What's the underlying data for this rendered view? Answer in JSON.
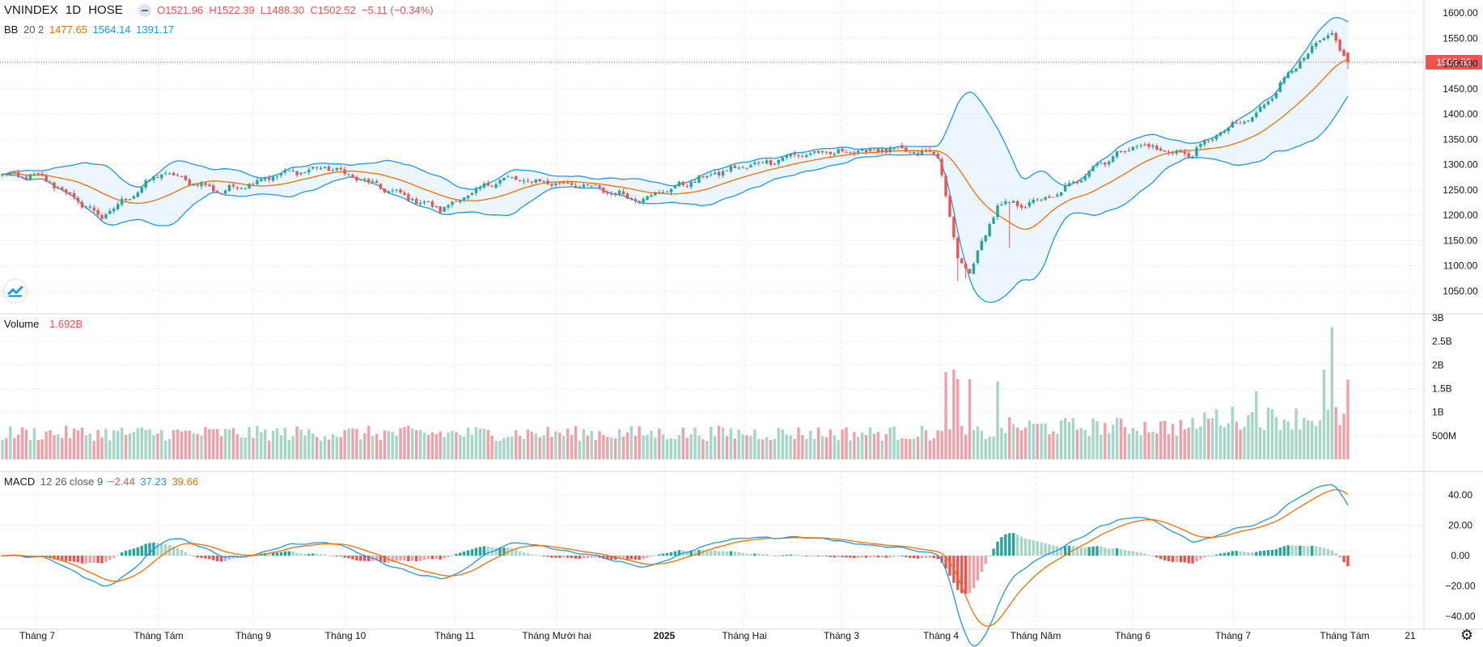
{
  "header": {
    "symbol": "VNINDEX",
    "interval": "1D",
    "exchange": "HOSE",
    "open": "O1521.96",
    "high": "H1522.39",
    "low": "L1488.30",
    "close": "C1502.52",
    "change": "−5.11 (−0.34%)"
  },
  "bb_legend": {
    "name": "BB",
    "params": "20 2",
    "basis": "1477.65",
    "upper": "1564.14",
    "lower": "1391.17"
  },
  "volume_legend": {
    "name": "Volume",
    "value": "1.692B"
  },
  "macd_legend": {
    "name": "MACD",
    "params": "12 26 close 9",
    "hist": "−2.44",
    "macd": "37.23",
    "signal": "39.66"
  },
  "colors": {
    "up": "#26a69a",
    "down": "#ef5350",
    "up_vol": "#a5d6c6",
    "down_vol": "#f1a0a8",
    "bb_band": "#2196f3",
    "bb_basis": "#ff6d00",
    "bb_fill": "#e3f2fd",
    "macd_line": "#2196f3",
    "signal_line": "#ff6d00",
    "last_price": "#ef5350"
  },
  "last_price_label": "1502.52",
  "x_axis_labels": [
    "Tháng 7",
    "Tháng Tám",
    "Tháng 9",
    "Tháng 10",
    "Tháng 11",
    "Tháng Mười hai",
    "2025",
    "Tháng Hai",
    "Tháng 3",
    "Tháng 4",
    "Tháng Năm",
    "Tháng 6",
    "Tháng 7",
    "Tháng Tám",
    "21"
  ],
  "chart_data": [
    {
      "type": "candlestick",
      "title": "VNINDEX 1D HOSE",
      "y_ticks": [
        1050,
        1100,
        1150,
        1200,
        1250,
        1300,
        1350,
        1400,
        1450,
        1500,
        1550,
        1600
      ],
      "y_tick_labels": [
        "1050.00",
        "1100.00",
        "1150.00",
        "1200.00",
        "1250.00",
        "1300.00",
        "1350.00",
        "1400.00",
        "1450.00",
        "1500.00",
        "1550.00",
        "1600.00"
      ],
      "ylim": [
        1030,
        1620
      ],
      "last_close": 1502.52,
      "grid": true,
      "series": [
        {
          "name": "close (approx.)",
          "month_anchors": [
            {
              "bar": 0,
              "value": 1280
            },
            {
              "bar": 10,
              "value": 1275
            },
            {
              "bar": 25,
              "value": 1196
            },
            {
              "bar": 40,
              "value": 1285
            },
            {
              "bar": 55,
              "value": 1247
            },
            {
              "bar": 70,
              "value": 1282
            },
            {
              "bar": 82,
              "value": 1295
            },
            {
              "bar": 95,
              "value": 1255
            },
            {
              "bar": 110,
              "value": 1212
            },
            {
              "bar": 125,
              "value": 1272
            },
            {
              "bar": 145,
              "value": 1260
            },
            {
              "bar": 160,
              "value": 1232
            },
            {
              "bar": 180,
              "value": 1285
            },
            {
              "bar": 200,
              "value": 1320
            },
            {
              "bar": 222,
              "value": 1330
            },
            {
              "bar": 235,
              "value": 1320
            },
            {
              "bar": 240,
              "value": 1115
            },
            {
              "bar": 243,
              "value": 1085
            },
            {
              "bar": 250,
              "value": 1220
            },
            {
              "bar": 258,
              "value": 1223
            },
            {
              "bar": 265,
              "value": 1240
            },
            {
              "bar": 275,
              "value": 1300
            },
            {
              "bar": 285,
              "value": 1340
            },
            {
              "bar": 298,
              "value": 1318
            },
            {
              "bar": 305,
              "value": 1360
            },
            {
              "bar": 315,
              "value": 1398
            },
            {
              "bar": 323,
              "value": 1480
            },
            {
              "bar": 329,
              "value": 1527
            },
            {
              "bar": 334,
              "value": 1562
            },
            {
              "bar": 337,
              "value": 1508
            },
            {
              "bar": 338,
              "value": 1502.52
            }
          ]
        }
      ],
      "bollinger": {
        "length": 20,
        "mult": 2,
        "basis_last": 1477.65,
        "upper_last": 1564.14,
        "lower_last": 1391.17
      }
    },
    {
      "type": "bar",
      "title": "Volume",
      "y_ticks": [
        500000000,
        1000000000,
        1500000000,
        2000000000,
        2500000000,
        3000000000
      ],
      "y_tick_labels": [
        "500M",
        "1B",
        "1.5B",
        "2B",
        "2.5B",
        "3B"
      ],
      "ylim": [
        0,
        3000000000
      ],
      "last_value": 1692000000,
      "series": [
        {
          "name": "Volume (approx.)",
          "typical": 650000000,
          "spikes": [
            {
              "bar": 237,
              "value": 1850000000
            },
            {
              "bar": 239,
              "value": 1900000000
            },
            {
              "bar": 240,
              "value": 1700000000
            },
            {
              "bar": 243,
              "value": 1700000000
            },
            {
              "bar": 250,
              "value": 1650000000
            },
            {
              "bar": 315,
              "value": 1450000000
            },
            {
              "bar": 332,
              "value": 1900000000
            },
            {
              "bar": 334,
              "value": 2800000000
            },
            {
              "bar": 338,
              "value": 1692000000
            }
          ]
        }
      ]
    },
    {
      "type": "line",
      "title": "MACD 12 26 close 9",
      "y_ticks": [
        -40,
        -20,
        0,
        20,
        40
      ],
      "y_tick_labels": [
        "−40.00",
        "−20.00",
        "0.00",
        "20.00",
        "40.00"
      ],
      "ylim": [
        -45,
        48
      ],
      "last_values": {
        "histogram": -2.44,
        "macd": 37.23,
        "signal": 39.66
      },
      "series": [
        {
          "name": "MACD",
          "derived_from": "close"
        },
        {
          "name": "Signal",
          "derived_from": "MACD"
        },
        {
          "name": "Histogram",
          "derived_from": "MACD - Signal"
        }
      ]
    }
  ]
}
